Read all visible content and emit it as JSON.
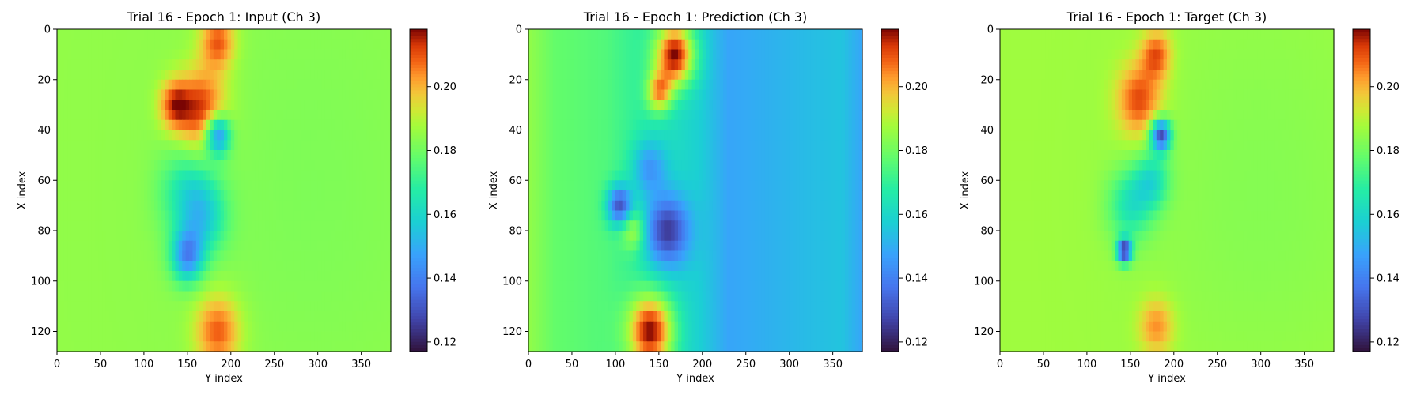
{
  "figure": {
    "panels": [
      {
        "title": "Trial 16 - Epoch 1: Input (Ch 3)"
      },
      {
        "title": "Trial 16 - Epoch 1: Prediction (Ch 3)"
      },
      {
        "title": "Trial 16 - Epoch 1: Target (Ch 3)"
      }
    ]
  },
  "chart_data": [
    {
      "type": "heatmap",
      "title": "Trial 16 - Epoch 1: Input (Ch 3)",
      "xlabel": "Y index",
      "ylabel": "X index",
      "xlim": [
        0,
        384
      ],
      "ylim": [
        128,
        0
      ],
      "xticks": [
        0,
        50,
        100,
        150,
        200,
        250,
        300,
        350
      ],
      "yticks": [
        0,
        20,
        40,
        60,
        80,
        100,
        120
      ],
      "colormap": "turbo",
      "colorbar": {
        "range": [
          0.117,
          0.218
        ],
        "ticks": [
          0.12,
          0.14,
          0.16,
          0.18,
          0.2
        ]
      },
      "background_value": 0.185,
      "features": [
        {
          "cx": 165,
          "cy": 32,
          "r": 20,
          "value": 0.215
        },
        {
          "cx": 135,
          "cy": 30,
          "r": 12,
          "value": 0.21
        },
        {
          "cx": 185,
          "cy": 5,
          "r": 14,
          "value": 0.21
        },
        {
          "cx": 185,
          "cy": 120,
          "r": 18,
          "value": 0.21
        },
        {
          "cx": 185,
          "cy": 42,
          "r": 10,
          "value": 0.14
        },
        {
          "cx": 150,
          "cy": 90,
          "r": 13,
          "value": 0.145
        },
        {
          "cx": 150,
          "cy": 65,
          "r": 22,
          "value": 0.165
        },
        {
          "cx": 170,
          "cy": 75,
          "r": 18,
          "value": 0.165
        },
        {
          "cx": 290,
          "cy": 64,
          "r": 110,
          "value": 0.182
        }
      ]
    },
    {
      "type": "heatmap",
      "title": "Trial 16 - Epoch 1: Prediction (Ch 3)",
      "xlabel": "Y index",
      "ylabel": "X index",
      "xlim": [
        0,
        384
      ],
      "ylim": [
        128,
        0
      ],
      "xticks": [
        0,
        50,
        100,
        150,
        200,
        250,
        300,
        350
      ],
      "yticks": [
        0,
        20,
        40,
        60,
        80,
        100,
        120
      ],
      "colormap": "turbo",
      "colorbar": {
        "range": [
          0.117,
          0.218
        ],
        "ticks": [
          0.12,
          0.14,
          0.16,
          0.18,
          0.2
        ]
      },
      "background_value": 0.175,
      "profile_by_y": [
        [
          0,
          0.185
        ],
        [
          30,
          0.178
        ],
        [
          90,
          0.175
        ],
        [
          150,
          0.165
        ],
        [
          195,
          0.158
        ],
        [
          230,
          0.148
        ],
        [
          300,
          0.152
        ],
        [
          360,
          0.155
        ],
        [
          384,
          0.148
        ]
      ],
      "features": [
        {
          "cx": 168,
          "cy": 10,
          "r": 16,
          "value": 0.218
        },
        {
          "cx": 140,
          "cy": 120,
          "r": 18,
          "value": 0.218
        },
        {
          "cx": 150,
          "cy": 25,
          "r": 10,
          "value": 0.2
        },
        {
          "cx": 160,
          "cy": 80,
          "r": 18,
          "value": 0.125
        },
        {
          "cx": 105,
          "cy": 70,
          "r": 10,
          "value": 0.13
        },
        {
          "cx": 140,
          "cy": 55,
          "r": 14,
          "value": 0.145
        },
        {
          "cx": 120,
          "cy": 80,
          "r": 10,
          "value": 0.19
        }
      ]
    },
    {
      "type": "heatmap",
      "title": "Trial 16 - Epoch 1: Target (Ch 3)",
      "xlabel": "Y index",
      "ylabel": "X index",
      "xlim": [
        0,
        384
      ],
      "ylim": [
        128,
        0
      ],
      "xticks": [
        0,
        50,
        100,
        150,
        200,
        250,
        300,
        350
      ],
      "yticks": [
        0,
        20,
        40,
        60,
        80,
        100,
        120
      ],
      "colormap": "turbo",
      "colorbar": {
        "range": [
          0.117,
          0.218
        ],
        "ticks": [
          0.12,
          0.14,
          0.16,
          0.18,
          0.2
        ]
      },
      "background_value": 0.187,
      "features": [
        {
          "cx": 160,
          "cy": 28,
          "r": 18,
          "value": 0.212
        },
        {
          "cx": 180,
          "cy": 10,
          "r": 12,
          "value": 0.21
        },
        {
          "cx": 180,
          "cy": 118,
          "r": 14,
          "value": 0.205
        },
        {
          "cx": 185,
          "cy": 42,
          "r": 8,
          "value": 0.128
        },
        {
          "cx": 143,
          "cy": 88,
          "r": 6,
          "value": 0.125
        },
        {
          "cx": 150,
          "cy": 70,
          "r": 18,
          "value": 0.165
        },
        {
          "cx": 175,
          "cy": 60,
          "r": 14,
          "value": 0.165
        },
        {
          "cx": 300,
          "cy": 64,
          "r": 100,
          "value": 0.183
        }
      ]
    }
  ]
}
